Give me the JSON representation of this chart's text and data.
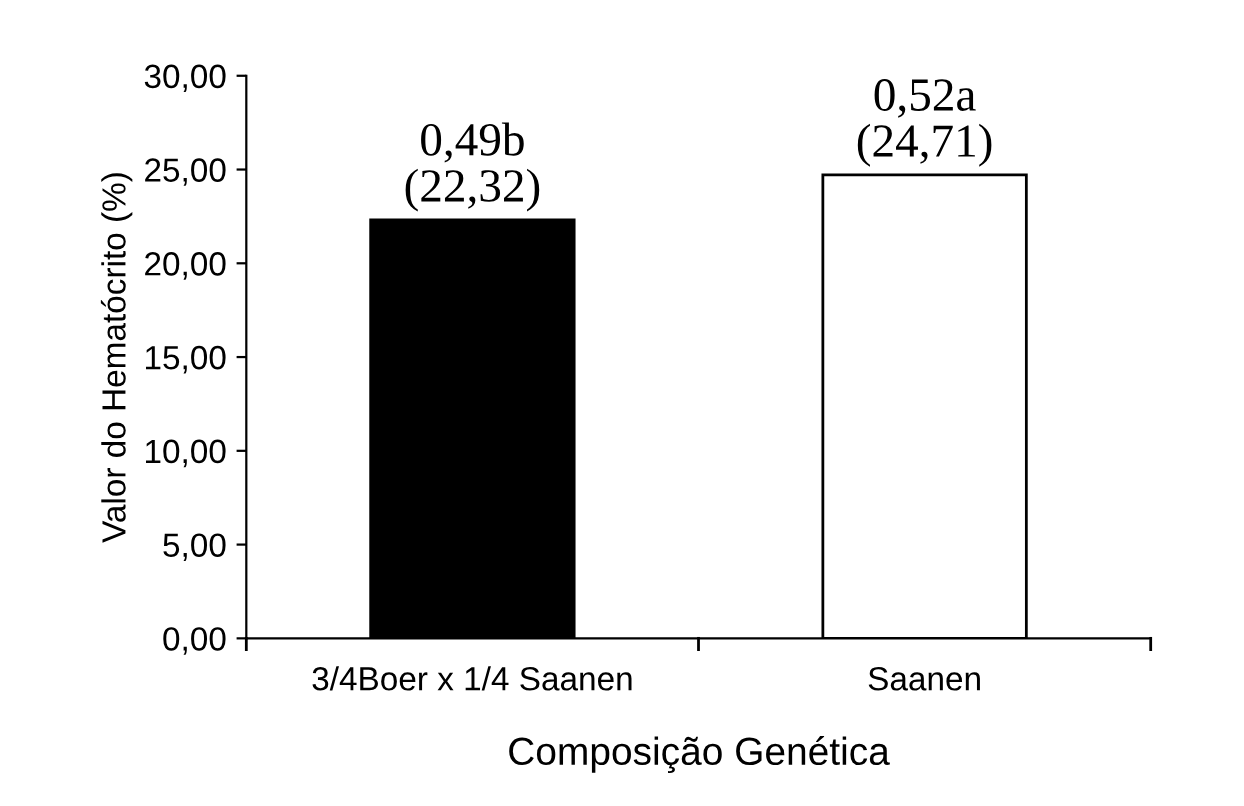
{
  "chart_data": {
    "type": "bar",
    "xlabel": "Composição Genética",
    "ylabel": "Valor do Hematócrito (%)",
    "categories": [
      "3/4Boer x 1/4 Saanen",
      "Saanen"
    ],
    "values": [
      22.32,
      24.71
    ],
    "colors": [
      "#000000",
      "#ffffff"
    ],
    "value_labels": [
      "0,49b\n(22,32)",
      "0,52a\n(24,71)"
    ],
    "ylim": [
      0,
      30
    ],
    "yticks": [
      {
        "value": 0,
        "label": "0,00"
      },
      {
        "value": 5,
        "label": "5,00"
      },
      {
        "value": 10,
        "label": "10,00"
      },
      {
        "value": 15,
        "label": "15,00"
      },
      {
        "value": 20,
        "label": "20,00"
      },
      {
        "value": 25,
        "label": "25,00"
      },
      {
        "value": 30,
        "label": "30,00"
      }
    ],
    "grid": false,
    "legend": false
  }
}
